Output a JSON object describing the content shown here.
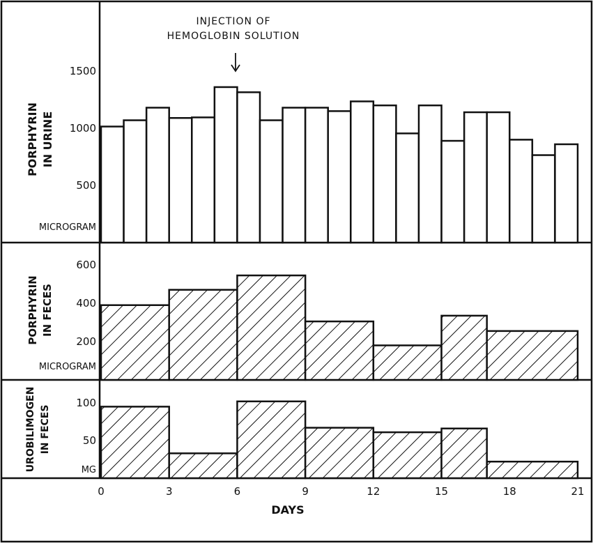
{
  "figure": {
    "annotation_line1": "INJECTION OF",
    "annotation_line2": "HEMOGLOBIN SOLUTION",
    "xlabel": "DAYS"
  },
  "chart_data": [
    {
      "type": "bar",
      "panel": "top",
      "ylabel_line1": "PORPHYRIN",
      "ylabel_line2": "IN URINE",
      "unit": "MICROGRAM",
      "ylim": [
        0,
        2000
      ],
      "yticks": [
        500,
        1000,
        1500
      ],
      "ytick_labels": [
        "500",
        "1000",
        "1500"
      ],
      "bar_width_days": 1,
      "style": "open",
      "x_start": [
        0,
        1,
        2,
        3,
        4,
        5,
        6,
        7,
        8,
        9,
        10,
        11,
        12,
        13,
        14,
        15,
        16,
        17,
        18,
        19,
        20
      ],
      "values": [
        1015,
        1070,
        1180,
        1090,
        1095,
        1360,
        1315,
        1070,
        1180,
        1180,
        1150,
        1235,
        1200,
        955,
        1200,
        890,
        1140,
        1140,
        900,
        765,
        860
      ]
    },
    {
      "type": "bar",
      "panel": "middle",
      "ylabel_line1": "PORPHYRIN",
      "ylabel_line2": "IN FECES",
      "unit": "MICROGRAM",
      "ylim": [
        0,
        700
      ],
      "yticks": [
        200,
        400,
        600
      ],
      "ytick_labels": [
        "200",
        "400",
        "600"
      ],
      "style": "hatched",
      "bins": [
        [
          0,
          3
        ],
        [
          3,
          6
        ],
        [
          6,
          9
        ],
        [
          9,
          12
        ],
        [
          12,
          15
        ],
        [
          15,
          17
        ],
        [
          17,
          21
        ]
      ],
      "values": [
        390,
        470,
        545,
        305,
        180,
        335,
        255
      ]
    },
    {
      "type": "bar",
      "panel": "bottom",
      "ylabel_line1": "UROBILIMOGEN",
      "ylabel_line2": "IN FECES",
      "unit": "MG",
      "ylim": [
        0,
        120
      ],
      "yticks": [
        50,
        100
      ],
      "ytick_labels": [
        "50",
        "100"
      ],
      "style": "hatched",
      "bins": [
        [
          0,
          3
        ],
        [
          3,
          6
        ],
        [
          6,
          9
        ],
        [
          9,
          12
        ],
        [
          12,
          15
        ],
        [
          15,
          17
        ],
        [
          17,
          21
        ]
      ],
      "values": [
        95,
        33,
        102,
        67,
        61,
        66,
        22
      ]
    }
  ],
  "xaxis": {
    "ticks": [
      0,
      3,
      6,
      9,
      12,
      15,
      18,
      21
    ],
    "tick_labels": [
      "0",
      "3",
      "6",
      "9",
      "12",
      "15",
      "18",
      "21"
    ]
  }
}
